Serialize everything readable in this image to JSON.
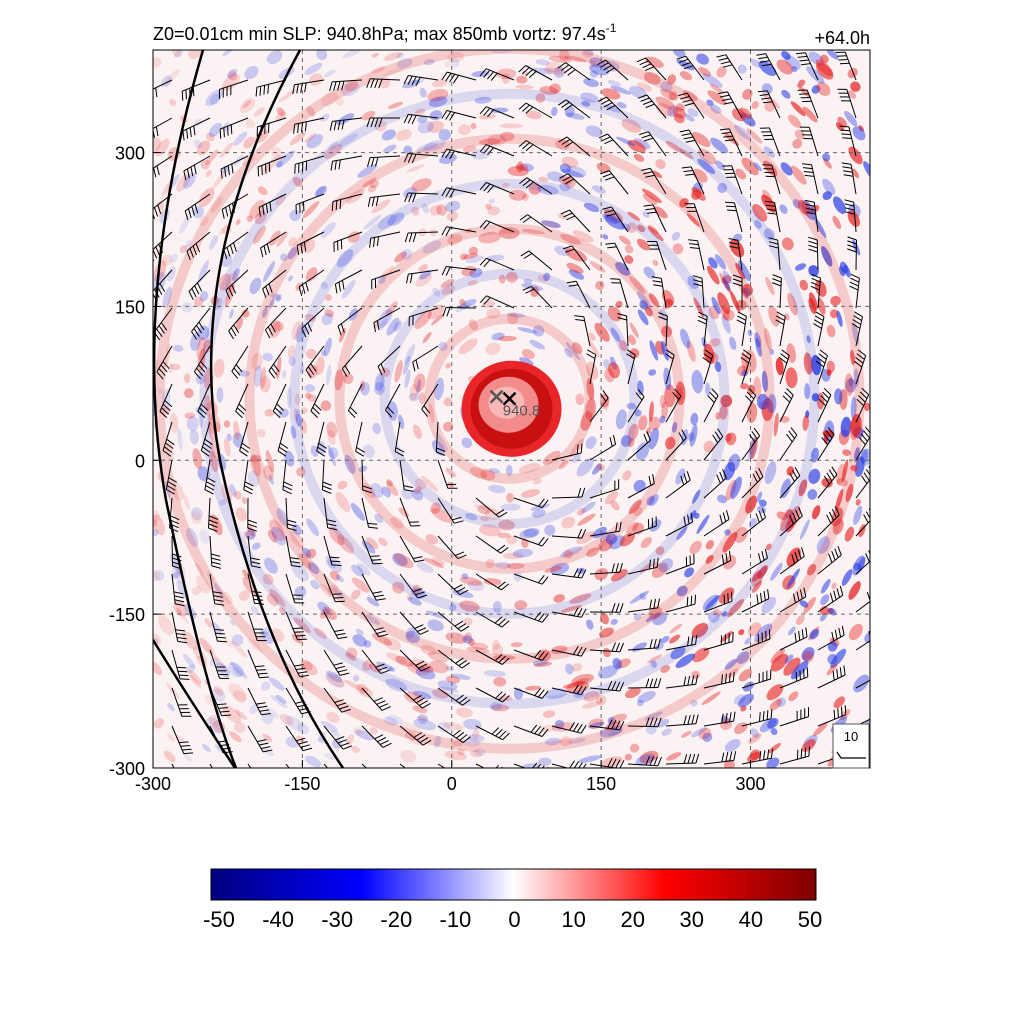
{
  "header": {
    "title_main": "Z0=0.01cm  min SLP: 940.8hPa; max 850mb vortz:  97.4s",
    "title_sup": "-1",
    "forecast_hour": "+64.0h"
  },
  "chart_data": {
    "type": "heatmap",
    "field": "850mb relative vorticity with wind barbs",
    "xlim": [
      -300,
      420
    ],
    "ylim": [
      -300,
      400
    ],
    "x_ticks": [
      "-300",
      "-150",
      "0",
      "150",
      "300"
    ],
    "y_ticks": [
      "-300",
      "-150",
      "0",
      "150",
      "300"
    ],
    "x_tick_values": [
      -300,
      -150,
      0,
      150,
      300
    ],
    "y_tick_values": [
      -300,
      -150,
      0,
      150,
      300
    ],
    "grid": "dashed at tick values",
    "storm_center": {
      "x": 58,
      "y": 60,
      "label": "940.8"
    },
    "secondary_center": {
      "x": 45,
      "y": 62
    },
    "colorbar": {
      "min": -50,
      "max": 50,
      "tick_labels": [
        "-50",
        "-40",
        "-30",
        "-20",
        "-10",
        "0",
        "10",
        "20",
        "30",
        "40",
        "50"
      ],
      "colors": [
        "#00007f",
        "#0000ff",
        "#ffffff",
        "#ff0000",
        "#7f0000"
      ]
    },
    "reference_barb": {
      "label": "10"
    }
  }
}
